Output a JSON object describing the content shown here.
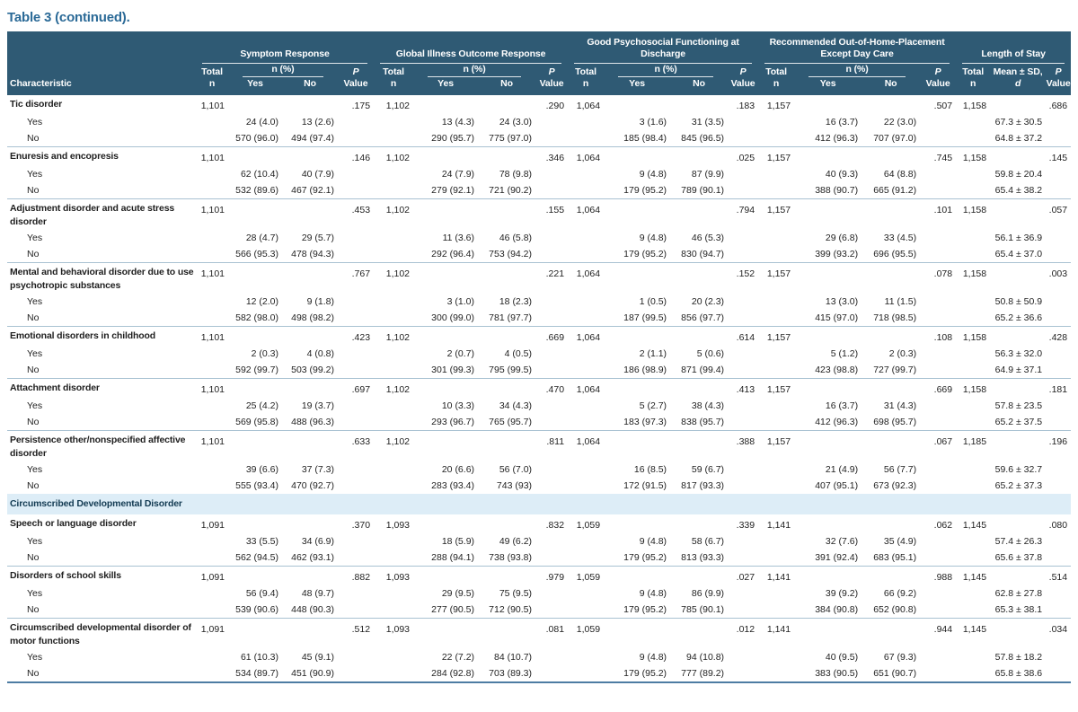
{
  "title": "Table 3 (continued).",
  "header": {
    "characteristic": "Characteristic",
    "groups": [
      {
        "label": "Symptom Response",
        "kind": "npct"
      },
      {
        "label": "Global Illness Outcome Response",
        "kind": "npct"
      },
      {
        "label": "Good Psychosocial Functioning at Discharge",
        "kind": "npct"
      },
      {
        "label": "Recommended Out-of-Home-Placement Except Day Care",
        "kind": "npct"
      },
      {
        "label": "Length of Stay",
        "kind": "mean"
      }
    ],
    "sub": {
      "total_line1": "Total",
      "total_line2": "n",
      "npct": "n (%)",
      "yes": "Yes",
      "no": "No",
      "p_line1": "P",
      "p_line2": "Value",
      "mean_line1": "Mean ± SD,",
      "mean_line2": "d"
    }
  },
  "labels": {
    "yes": "Yes",
    "no": "No"
  },
  "colors": {
    "header_bg": "#2f5a74",
    "title_text": "#2b6a97",
    "section_bg": "#ddedf7",
    "section_text": "#123a52",
    "rule_line": "#a9c2d2",
    "bottom_border": "#4d7ca3"
  },
  "rows": [
    {
      "type": "disorder",
      "name": "Tic disorder",
      "totals": [
        "1,101",
        "1,102",
        "1,064",
        "1,157",
        "1,158"
      ],
      "p": [
        ".175",
        ".290",
        ".183",
        ".507",
        ".686"
      ],
      "yes": [
        "24 (4.0)",
        "13 (2.6)",
        "13 (4.3)",
        "24 (3.0)",
        "3 (1.6)",
        "31 (3.5)",
        "16 (3.7)",
        "22 (3.0)",
        "67.3 ± 30.5"
      ],
      "no": [
        "570 (96.0)",
        "494 (97.4)",
        "290 (95.7)",
        "775 (97.0)",
        "185 (98.4)",
        "845 (96.5)",
        "412 (96.3)",
        "707 (97.0)",
        "64.8 ± 37.2"
      ]
    },
    {
      "type": "disorder",
      "name": "Enuresis and encopresis",
      "totals": [
        "1,101",
        "1,102",
        "1,064",
        "1,157",
        "1,158"
      ],
      "p": [
        ".146",
        ".346",
        ".025",
        ".745",
        ".145"
      ],
      "yes": [
        "62 (10.4)",
        "40 (7.9)",
        "24 (7.9)",
        "78 (9.8)",
        "9 (4.8)",
        "87 (9.9)",
        "40 (9.3)",
        "64 (8.8)",
        "59.8 ± 20.4"
      ],
      "no": [
        "532 (89.6)",
        "467 (92.1)",
        "279 (92.1)",
        "721 (90.2)",
        "179 (95.2)",
        "789 (90.1)",
        "388 (90.7)",
        "665 (91.2)",
        "65.4 ± 38.2"
      ]
    },
    {
      "type": "disorder",
      "name": "Adjustment disorder and acute stress disorder",
      "totals": [
        "1,101",
        "1,102",
        "1,064",
        "1,157",
        "1,158"
      ],
      "p": [
        ".453",
        ".155",
        ".794",
        ".101",
        ".057"
      ],
      "yes": [
        "28 (4.7)",
        "29 (5.7)",
        "11 (3.6)",
        "46 (5.8)",
        "9 (4.8)",
        "46 (5.3)",
        "29 (6.8)",
        "33 (4.5)",
        "56.1 ± 36.9"
      ],
      "no": [
        "566 (95.3)",
        "478 (94.3)",
        "292 (96.4)",
        "753 (94.2)",
        "179 (95.2)",
        "830 (94.7)",
        "399 (93.2)",
        "696 (95.5)",
        "65.4 ± 37.0"
      ]
    },
    {
      "type": "disorder",
      "name": "Mental and behavioral disorder due to use psychotropic substances",
      "totals": [
        "1,101",
        "1,102",
        "1,064",
        "1,157",
        "1,158"
      ],
      "p": [
        ".767",
        ".221",
        ".152",
        ".078",
        ".003"
      ],
      "yes": [
        "12 (2.0)",
        "9 (1.8)",
        "3 (1.0)",
        "18 (2.3)",
        "1 (0.5)",
        "20 (2.3)",
        "13 (3.0)",
        "11 (1.5)",
        "50.8 ± 50.9"
      ],
      "no": [
        "582 (98.0)",
        "498 (98.2)",
        "300 (99.0)",
        "781 (97.7)",
        "187 (99.5)",
        "856 (97.7)",
        "415 (97.0)",
        "718 (98.5)",
        "65.2 ± 36.6"
      ]
    },
    {
      "type": "disorder",
      "name": "Emotional disorders in childhood",
      "totals": [
        "1,101",
        "1,102",
        "1,064",
        "1,157",
        "1,158"
      ],
      "p": [
        ".423",
        ".669",
        ".614",
        ".108",
        ".428"
      ],
      "yes": [
        "2 (0.3)",
        "4 (0.8)",
        "2 (0.7)",
        "4 (0.5)",
        "2 (1.1)",
        "5 (0.6)",
        "5 (1.2)",
        "2 (0.3)",
        "56.3 ± 32.0"
      ],
      "no": [
        "592 (99.7)",
        "503 (99.2)",
        "301 (99.3)",
        "795 (99.5)",
        "186 (98.9)",
        "871 (99.4)",
        "423 (98.8)",
        "727 (99.7)",
        "64.9 ± 37.1"
      ]
    },
    {
      "type": "disorder",
      "name": "Attachment disorder",
      "totals": [
        "1,101",
        "1,102",
        "1,064",
        "1,157",
        "1,158"
      ],
      "p": [
        ".697",
        ".470",
        ".413",
        ".669",
        ".181"
      ],
      "yes": [
        "25 (4.2)",
        "19 (3.7)",
        "10 (3.3)",
        "34 (4.3)",
        "5 (2.7)",
        "38 (4.3)",
        "16 (3.7)",
        "31 (4.3)",
        "57.8 ± 23.5"
      ],
      "no": [
        "569 (95.8)",
        "488 (96.3)",
        "293 (96.7)",
        "765 (95.7)",
        "183 (97.3)",
        "838 (95.7)",
        "412 (96.3)",
        "698 (95.7)",
        "65.2 ± 37.5"
      ]
    },
    {
      "type": "disorder",
      "name": "Persistence other/nonspecified affective disorder",
      "totals": [
        "1,101",
        "1,102",
        "1,064",
        "1,157",
        "1,185"
      ],
      "p": [
        ".633",
        ".811",
        ".388",
        ".067",
        ".196"
      ],
      "yes": [
        "39 (6.6)",
        "37 (7.3)",
        "20 (6.6)",
        "56 (7.0)",
        "16 (8.5)",
        "59 (6.7)",
        "21 (4.9)",
        "56 (7.7)",
        "59.6 ± 32.7"
      ],
      "no": [
        "555 (93.4)",
        "470 (92.7)",
        "283 (93.4)",
        "743 (93)",
        "172 (91.5)",
        "817 (93.3)",
        "407 (95.1)",
        "673 (92.3)",
        "65.2 ± 37.3"
      ]
    },
    {
      "type": "section",
      "name": "Circumscribed Developmental Disorder"
    },
    {
      "type": "disorder",
      "name": "Speech or language disorder",
      "totals": [
        "1,091",
        "1,093",
        "1,059",
        "1,141",
        "1,145"
      ],
      "p": [
        ".370",
        ".832",
        ".339",
        ".062",
        ".080"
      ],
      "yes": [
        "33 (5.5)",
        "34 (6.9)",
        "18 (5.9)",
        "49 (6.2)",
        "9 (4.8)",
        "58 (6.7)",
        "32 (7.6)",
        "35 (4.9)",
        "57.4 ± 26.3"
      ],
      "no": [
        "562 (94.5)",
        "462 (93.1)",
        "288 (94.1)",
        "738 (93.8)",
        "179 (95.2)",
        "813 (93.3)",
        "391 (92.4)",
        "683 (95.1)",
        "65.6 ± 37.8"
      ]
    },
    {
      "type": "disorder",
      "name": "Disorders of school skills",
      "totals": [
        "1,091",
        "1,093",
        "1,059",
        "1,141",
        "1,145"
      ],
      "p": [
        ".882",
        ".979",
        ".027",
        ".988",
        ".514"
      ],
      "yes": [
        "56 (9.4)",
        "48 (9.7)",
        "29 (9.5)",
        "75 (9.5)",
        "9 (4.8)",
        "86 (9.9)",
        "39 (9.2)",
        "66 (9.2)",
        "62.8 ± 27.8"
      ],
      "no": [
        "539 (90.6)",
        "448 (90.3)",
        "277 (90.5)",
        "712 (90.5)",
        "179 (95.2)",
        "785 (90.1)",
        "384 (90.8)",
        "652 (90.8)",
        "65.3 ± 38.1"
      ]
    },
    {
      "type": "disorder",
      "name": "Circumscribed developmental disorder of motor functions",
      "totals": [
        "1,091",
        "1,093",
        "1,059",
        "1,141",
        "1,145"
      ],
      "p": [
        ".512",
        ".081",
        ".012",
        ".944",
        ".034"
      ],
      "yes": [
        "61 (10.3)",
        "45 (9.1)",
        "22 (7.2)",
        "84 (10.7)",
        "9 (4.8)",
        "94 (10.8)",
        "40 (9.5)",
        "67 (9.3)",
        "57.8 ± 18.2"
      ],
      "no": [
        "534 (89.7)",
        "451 (90.9)",
        "284 (92.8)",
        "703 (89.3)",
        "179 (95.2)",
        "777 (89.2)",
        "383 (90.5)",
        "651 (90.7)",
        "65.8 ± 38.6"
      ]
    }
  ]
}
